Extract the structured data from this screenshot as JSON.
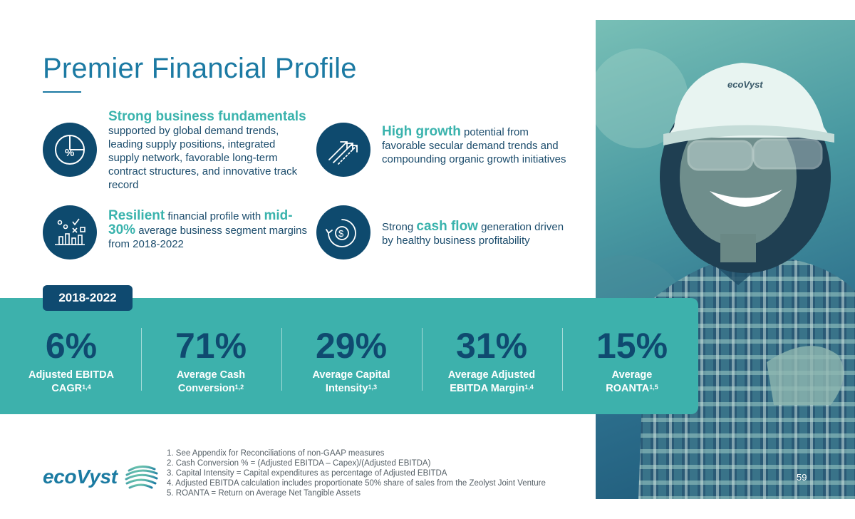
{
  "slide": {
    "title": "Premier Financial Profile",
    "page_number": "59"
  },
  "features": [
    {
      "icon": "pie-chart-percent-icon",
      "highlight": "Strong business fundamentals",
      "text": "supported by global demand trends, leading supply positions, integrated supply network, favorable long-term contract structures, and innovative track record"
    },
    {
      "icon": "growth-arrows-icon",
      "highlight": "High growth",
      "text_after": " potential from favorable secular demand trends and compounding organic growth initiatives"
    },
    {
      "icon": "analytics-chart-icon",
      "highlight_1": "Resilient",
      "text_1": " financial profile with ",
      "highlight_2": "mid-30%",
      "text_2": " average business segment margins from 2018-2022"
    },
    {
      "icon": "cash-flow-dollar-icon",
      "text_before": "Strong ",
      "highlight": "cash flow",
      "text_after": " generation driven by healthy business profitability"
    }
  ],
  "period": "2018-2022",
  "stats": [
    {
      "value": "6%",
      "label_1": "Adjusted EBITDA",
      "label_2": "CAGR",
      "sup": "1,4"
    },
    {
      "value": "71%",
      "label_1": "Average Cash",
      "label_2": "Conversion",
      "sup": "1,2"
    },
    {
      "value": "29%",
      "label_1": "Average Capital",
      "label_2": "Intensity",
      "sup": "1,3"
    },
    {
      "value": "31%",
      "label_1": "Average Adjusted",
      "label_2": "EBITDA Margin",
      "sup": "1,4"
    },
    {
      "value": "15%",
      "label_1": "Average",
      "label_2": "ROANTA",
      "sup": "1,5"
    }
  ],
  "footnotes": [
    "1. See Appendix for Reconciliations of non-GAAP measures",
    "2. Cash Conversion % = (Adjusted EBITDA – Capex)/(Adjusted EBITDA)",
    "3. Capital Intensity = Capital expenditures as percentage of Adjusted EBITDA",
    "4. Adjusted EBITDA calculation includes proportionate 50% share of sales from the Zeolyst Joint Venture",
    "5. ROANTA = Return on Average Net Tangible Assets"
  ],
  "logo": {
    "brand": "ecoVyst",
    "helmet_brand": "ecoVyst"
  },
  "colors": {
    "navy": "#0e4a6e",
    "teal": "#3db1ac",
    "title_blue": "#1c7aa3"
  }
}
